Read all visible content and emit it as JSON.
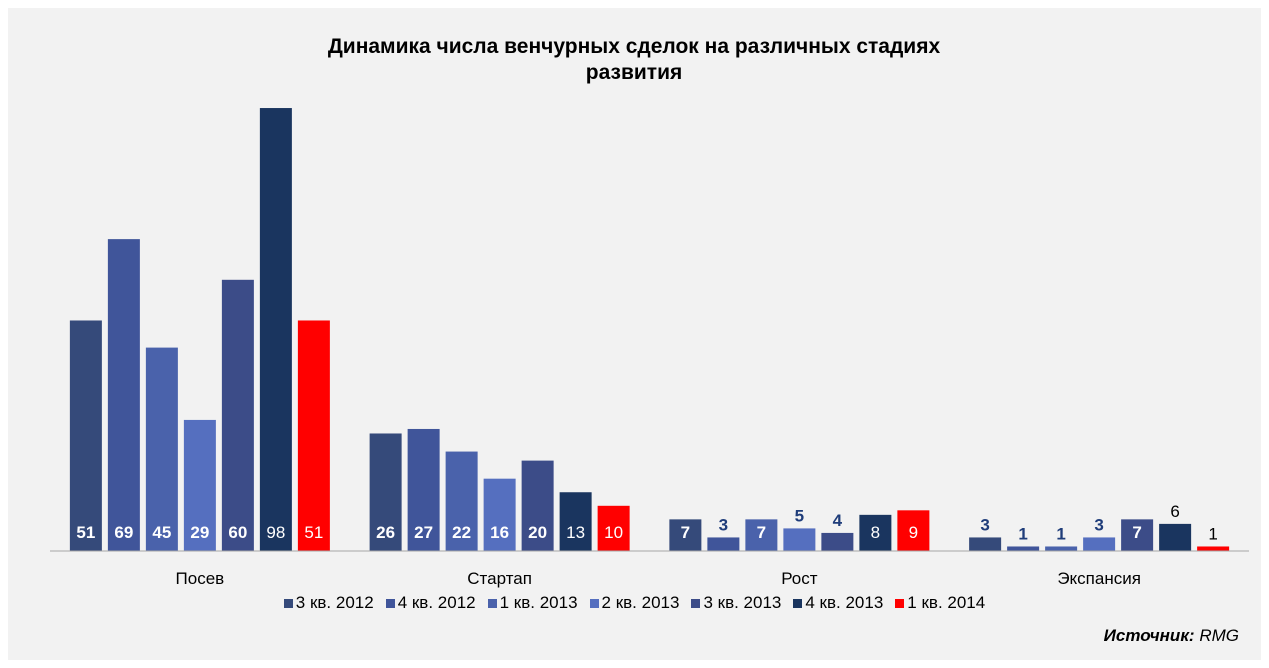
{
  "chart_data": {
    "type": "bar",
    "title": "Динамика числа венчурных сделок на различных стадиях развития",
    "categories": [
      "Посев",
      "Стартап",
      "Рост",
      "Экспансия"
    ],
    "series": [
      {
        "name": "3 кв. 2012",
        "color": "#354a7a",
        "values": [
          51,
          26,
          7,
          3
        ]
      },
      {
        "name": "4 кв. 2012",
        "color": "#40559a",
        "values": [
          69,
          27,
          3,
          1
        ]
      },
      {
        "name": "1 кв. 2013",
        "color": "#4a62ab",
        "values": [
          45,
          22,
          7,
          1
        ]
      },
      {
        "name": "2 кв. 2013",
        "color": "#556fbf",
        "values": [
          29,
          16,
          5,
          3
        ]
      },
      {
        "name": "3 кв. 2013",
        "color": "#3c4c88",
        "values": [
          60,
          20,
          4,
          7
        ]
      },
      {
        "name": "4 кв. 2013",
        "color": "#1a355f",
        "values": [
          98,
          13,
          8,
          6
        ]
      },
      {
        "name": "1 кв. 2014",
        "color": "#ff0000",
        "values": [
          51,
          10,
          9,
          1
        ]
      }
    ],
    "ylim": [
      0,
      100
    ],
    "source_label": "Источник:",
    "source": "RMG"
  }
}
